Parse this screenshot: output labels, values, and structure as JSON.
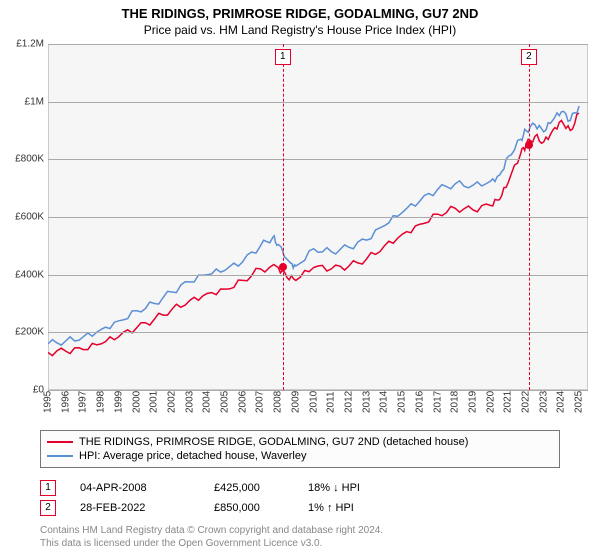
{
  "title": "THE RIDINGS, PRIMROSE RIDGE, GODALMING, GU7 2ND",
  "subtitle": "Price paid vs. HM Land Registry's House Price Index (HPI)",
  "chart": {
    "type": "line",
    "background_color": "#f6f6f6",
    "border_color": "#cccccc",
    "grid_color": "#aaaaaa",
    "label_fontsize": 10,
    "title_fontsize": 13,
    "ylim": [
      0,
      1200000
    ],
    "ytick_step": 200000,
    "ytick_labels": [
      "£0",
      "£200K",
      "£400K",
      "£600K",
      "£800K",
      "£1M",
      "£1.2M"
    ],
    "x_years": [
      1995,
      1996,
      1997,
      1998,
      1999,
      2000,
      2001,
      2002,
      2003,
      2004,
      2005,
      2006,
      2007,
      2008,
      2009,
      2010,
      2011,
      2012,
      2013,
      2014,
      2015,
      2016,
      2017,
      2018,
      2019,
      2020,
      2021,
      2022,
      2023,
      2024,
      2025
    ],
    "xlim": [
      1995,
      2025.5
    ],
    "series": [
      {
        "name": "property",
        "label": "THE RIDINGS, PRIMROSE RIDGE, GODALMING, GU7 2ND (detached house)",
        "color": "#e4002b",
        "line_width": 1.5,
        "points": [
          [
            1995,
            130000
          ],
          [
            1996,
            135000
          ],
          [
            1997,
            140000
          ],
          [
            1998,
            160000
          ],
          [
            1999,
            185000
          ],
          [
            2000,
            215000
          ],
          [
            2001,
            245000
          ],
          [
            2002,
            280000
          ],
          [
            2003,
            310000
          ],
          [
            2004,
            335000
          ],
          [
            2005,
            350000
          ],
          [
            2006,
            380000
          ],
          [
            2007,
            420000
          ],
          [
            2008,
            425000
          ],
          [
            2008.5,
            390000
          ],
          [
            2009,
            380000
          ],
          [
            2010,
            425000
          ],
          [
            2011,
            420000
          ],
          [
            2012,
            430000
          ],
          [
            2013,
            455000
          ],
          [
            2014,
            500000
          ],
          [
            2015,
            540000
          ],
          [
            2016,
            575000
          ],
          [
            2017,
            610000
          ],
          [
            2018,
            630000
          ],
          [
            2019,
            625000
          ],
          [
            2020,
            640000
          ],
          [
            2020.5,
            660000
          ],
          [
            2021,
            720000
          ],
          [
            2021.7,
            820000
          ],
          [
            2022,
            850000
          ],
          [
            2022.5,
            880000
          ],
          [
            2023,
            860000
          ],
          [
            2023.5,
            900000
          ],
          [
            2024,
            935000
          ],
          [
            2024.5,
            900000
          ],
          [
            2025,
            960000
          ]
        ]
      },
      {
        "name": "hpi",
        "label": "HPI: Average price, detached house, Waverley",
        "color": "#5b8fd6",
        "line_width": 1.5,
        "points": [
          [
            1995,
            160000
          ],
          [
            1996,
            170000
          ],
          [
            1997,
            185000
          ],
          [
            1998,
            210000
          ],
          [
            1999,
            240000
          ],
          [
            2000,
            275000
          ],
          [
            2001,
            300000
          ],
          [
            2002,
            340000
          ],
          [
            2003,
            375000
          ],
          [
            2004,
            400000
          ],
          [
            2005,
            415000
          ],
          [
            2006,
            445000
          ],
          [
            2007,
            500000
          ],
          [
            2007.7,
            530000
          ],
          [
            2008,
            505000
          ],
          [
            2008.7,
            440000
          ],
          [
            2009,
            430000
          ],
          [
            2010,
            490000
          ],
          [
            2011,
            480000
          ],
          [
            2012,
            495000
          ],
          [
            2013,
            520000
          ],
          [
            2014,
            570000
          ],
          [
            2015,
            615000
          ],
          [
            2016,
            655000
          ],
          [
            2017,
            695000
          ],
          [
            2018,
            715000
          ],
          [
            2019,
            710000
          ],
          [
            2020,
            725000
          ],
          [
            2020.5,
            745000
          ],
          [
            2021,
            810000
          ],
          [
            2021.7,
            870000
          ],
          [
            2022,
            900000
          ],
          [
            2022.5,
            920000
          ],
          [
            2023,
            895000
          ],
          [
            2023.5,
            935000
          ],
          [
            2024,
            965000
          ],
          [
            2024.5,
            935000
          ],
          [
            2025,
            985000
          ]
        ]
      }
    ],
    "events": [
      {
        "n": "1",
        "year": 2008.26,
        "date": "04-APR-2008",
        "price_label": "£425,000",
        "price": 425000,
        "delta": "18% ↓ HPI",
        "line_color": "#e4002b",
        "marker_color": "#e4002b"
      },
      {
        "n": "2",
        "year": 2022.16,
        "date": "28-FEB-2022",
        "price_label": "£850,000",
        "price": 850000,
        "delta": "1% ↑ HPI",
        "line_color": "#e4002b",
        "marker_color": "#e4002b"
      }
    ]
  },
  "legend_title": "",
  "attribution_line1": "Contains HM Land Registry data © Crown copyright and database right 2024.",
  "attribution_line2": "This data is licensed under the Open Government Licence v3.0."
}
